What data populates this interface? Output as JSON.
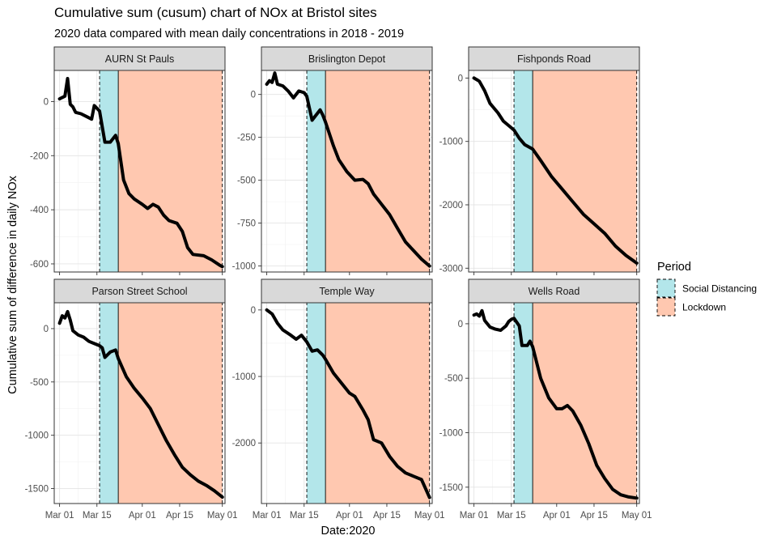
{
  "title": "Cumulative sum (cusum) chart of NOx at Bristol sites",
  "subtitle": "2020 data compared with mean daily concentrations in 2018 - 2019",
  "chart_data": {
    "type": "line",
    "xlabel": "Date:2020",
    "ylabel": "Cumulative sum of difference in daily NOx",
    "x_range": [
      "2020-02-28",
      "2020-05-02"
    ],
    "x_ticks": [
      {
        "date": "2020-03-01",
        "label": "Mar 01"
      },
      {
        "date": "2020-03-15",
        "label": "Mar 15"
      },
      {
        "date": "2020-04-01",
        "label": "Apr 01"
      },
      {
        "date": "2020-04-15",
        "label": "Apr 15"
      },
      {
        "date": "2020-05-01",
        "label": "May 01"
      }
    ],
    "grid": true,
    "legend": {
      "title": "Period",
      "position": "right",
      "entries": [
        {
          "label": "Social Distancing",
          "color": "#b3e6ea"
        },
        {
          "label": "Lockdown",
          "color": "#ffc8b0"
        }
      ]
    },
    "periods": [
      {
        "name": "Social Distancing",
        "start": "2020-03-16",
        "end": "2020-03-23"
      },
      {
        "name": "Lockdown",
        "start": "2020-03-23",
        "end": "2020-05-01"
      }
    ],
    "panels": [
      {
        "name": "AURN St Pauls",
        "ylim": [
          -630,
          115
        ],
        "yticks": [
          0,
          -200,
          -400,
          -600
        ],
        "ytick_labels": [
          "0",
          "-200",
          "-400",
          "-600"
        ],
        "points": [
          [
            "2020-03-01",
            10
          ],
          [
            "2020-03-02",
            15
          ],
          [
            "2020-03-03",
            20
          ],
          [
            "2020-03-04",
            85
          ],
          [
            "2020-03-05",
            -10
          ],
          [
            "2020-03-06",
            -20
          ],
          [
            "2020-03-07",
            -40
          ],
          [
            "2020-03-09",
            -45
          ],
          [
            "2020-03-11",
            -55
          ],
          [
            "2020-03-13",
            -65
          ],
          [
            "2020-03-14",
            -15
          ],
          [
            "2020-03-16",
            -35
          ],
          [
            "2020-03-18",
            -150
          ],
          [
            "2020-03-20",
            -150
          ],
          [
            "2020-03-22",
            -125
          ],
          [
            "2020-03-23",
            -155
          ],
          [
            "2020-03-25",
            -290
          ],
          [
            "2020-03-27",
            -340
          ],
          [
            "2020-03-29",
            -360
          ],
          [
            "2020-04-01",
            -380
          ],
          [
            "2020-04-03",
            -395
          ],
          [
            "2020-04-05",
            -380
          ],
          [
            "2020-04-07",
            -390
          ],
          [
            "2020-04-09",
            -420
          ],
          [
            "2020-04-11",
            -440
          ],
          [
            "2020-04-14",
            -450
          ],
          [
            "2020-04-16",
            -480
          ],
          [
            "2020-04-18",
            -540
          ],
          [
            "2020-04-20",
            -565
          ],
          [
            "2020-04-24",
            -570
          ],
          [
            "2020-04-27",
            -585
          ],
          [
            "2020-04-30",
            -605
          ],
          [
            "2020-05-01",
            -610
          ]
        ]
      },
      {
        "name": "Brislington Depot",
        "ylim": [
          -1035,
          140
        ],
        "yticks": [
          0,
          -250,
          -500,
          -750,
          -1000
        ],
        "ytick_labels": [
          "0",
          "-250",
          "-500",
          "-750",
          "-1000"
        ],
        "points": [
          [
            "2020-03-01",
            60
          ],
          [
            "2020-03-02",
            80
          ],
          [
            "2020-03-03",
            70
          ],
          [
            "2020-03-04",
            125
          ],
          [
            "2020-03-05",
            60
          ],
          [
            "2020-03-07",
            50
          ],
          [
            "2020-03-09",
            20
          ],
          [
            "2020-03-11",
            -20
          ],
          [
            "2020-03-13",
            20
          ],
          [
            "2020-03-15",
            10
          ],
          [
            "2020-03-16",
            -10
          ],
          [
            "2020-03-18",
            -150
          ],
          [
            "2020-03-20",
            -110
          ],
          [
            "2020-03-21",
            -90
          ],
          [
            "2020-03-22",
            -120
          ],
          [
            "2020-03-23",
            -160
          ],
          [
            "2020-03-26",
            -300
          ],
          [
            "2020-03-28",
            -380
          ],
          [
            "2020-03-31",
            -450
          ],
          [
            "2020-04-03",
            -500
          ],
          [
            "2020-04-06",
            -495
          ],
          [
            "2020-04-08",
            -520
          ],
          [
            "2020-04-10",
            -580
          ],
          [
            "2020-04-13",
            -640
          ],
          [
            "2020-04-16",
            -700
          ],
          [
            "2020-04-19",
            -780
          ],
          [
            "2020-04-22",
            -860
          ],
          [
            "2020-04-25",
            -910
          ],
          [
            "2020-04-28",
            -960
          ],
          [
            "2020-05-01",
            -1000
          ]
        ]
      },
      {
        "name": "Fishponds Road",
        "ylim": [
          -3060,
          120
        ],
        "yticks": [
          0,
          -1000,
          -2000,
          -3000
        ],
        "ytick_labels": [
          "0",
          "-1000",
          "-2000",
          "-3000"
        ],
        "points": [
          [
            "2020-03-01",
            0
          ],
          [
            "2020-03-03",
            -50
          ],
          [
            "2020-03-05",
            -200
          ],
          [
            "2020-03-07",
            -400
          ],
          [
            "2020-03-10",
            -550
          ],
          [
            "2020-03-12",
            -680
          ],
          [
            "2020-03-14",
            -750
          ],
          [
            "2020-03-16",
            -820
          ],
          [
            "2020-03-18",
            -950
          ],
          [
            "2020-03-20",
            -1050
          ],
          [
            "2020-03-23",
            -1120
          ],
          [
            "2020-03-26",
            -1300
          ],
          [
            "2020-03-30",
            -1550
          ],
          [
            "2020-04-03",
            -1750
          ],
          [
            "2020-04-07",
            -1950
          ],
          [
            "2020-04-11",
            -2150
          ],
          [
            "2020-04-15",
            -2300
          ],
          [
            "2020-04-19",
            -2450
          ],
          [
            "2020-04-23",
            -2650
          ],
          [
            "2020-04-27",
            -2800
          ],
          [
            "2020-05-01",
            -2920
          ]
        ]
      },
      {
        "name": "Parson Street School",
        "ylim": [
          -1640,
          250
        ],
        "yticks": [
          0,
          -500,
          -1000,
          -1500
        ],
        "ytick_labels": [
          "0",
          "-500",
          "-1000",
          "-1500"
        ],
        "points": [
          [
            "2020-03-01",
            50
          ],
          [
            "2020-03-02",
            120
          ],
          [
            "2020-03-03",
            100
          ],
          [
            "2020-03-04",
            160
          ],
          [
            "2020-03-05",
            80
          ],
          [
            "2020-03-06",
            -20
          ],
          [
            "2020-03-08",
            -60
          ],
          [
            "2020-03-10",
            -80
          ],
          [
            "2020-03-12",
            -120
          ],
          [
            "2020-03-14",
            -140
          ],
          [
            "2020-03-16",
            -160
          ],
          [
            "2020-03-17",
            -180
          ],
          [
            "2020-03-18",
            -270
          ],
          [
            "2020-03-20",
            -220
          ],
          [
            "2020-03-22",
            -200
          ],
          [
            "2020-03-23",
            -280
          ],
          [
            "2020-03-26",
            -450
          ],
          [
            "2020-03-29",
            -560
          ],
          [
            "2020-04-01",
            -650
          ],
          [
            "2020-04-04",
            -750
          ],
          [
            "2020-04-07",
            -900
          ],
          [
            "2020-04-10",
            -1050
          ],
          [
            "2020-04-13",
            -1180
          ],
          [
            "2020-04-16",
            -1300
          ],
          [
            "2020-04-19",
            -1370
          ],
          [
            "2020-04-22",
            -1430
          ],
          [
            "2020-04-25",
            -1470
          ],
          [
            "2020-04-28",
            -1520
          ],
          [
            "2020-05-01",
            -1580
          ]
        ]
      },
      {
        "name": "Temple Way",
        "ylim": [
          -2910,
          120
        ],
        "yticks": [
          0,
          -1000,
          -2000
        ],
        "ytick_labels": [
          "0",
          "-1000",
          "-2000"
        ],
        "points": [
          [
            "2020-03-01",
            0
          ],
          [
            "2020-03-03",
            -60
          ],
          [
            "2020-03-05",
            -200
          ],
          [
            "2020-03-07",
            -300
          ],
          [
            "2020-03-10",
            -380
          ],
          [
            "2020-03-12",
            -440
          ],
          [
            "2020-03-14",
            -380
          ],
          [
            "2020-03-16",
            -480
          ],
          [
            "2020-03-18",
            -620
          ],
          [
            "2020-03-20",
            -600
          ],
          [
            "2020-03-22",
            -680
          ],
          [
            "2020-03-23",
            -740
          ],
          [
            "2020-03-26",
            -950
          ],
          [
            "2020-03-29",
            -1100
          ],
          [
            "2020-04-01",
            -1250
          ],
          [
            "2020-04-03",
            -1300
          ],
          [
            "2020-04-06",
            -1500
          ],
          [
            "2020-04-08",
            -1650
          ],
          [
            "2020-04-10",
            -1950
          ],
          [
            "2020-04-13",
            -2000
          ],
          [
            "2020-04-16",
            -2200
          ],
          [
            "2020-04-19",
            -2350
          ],
          [
            "2020-04-22",
            -2450
          ],
          [
            "2020-04-25",
            -2500
          ],
          [
            "2020-04-28",
            -2550
          ],
          [
            "2020-05-01",
            -2820
          ]
        ]
      },
      {
        "name": "Wells Road",
        "ylim": [
          -1650,
          200
        ],
        "yticks": [
          0,
          -500,
          -1000,
          -1500
        ],
        "ytick_labels": [
          "0",
          "-500",
          "-1000",
          "-1500"
        ],
        "points": [
          [
            "2020-03-01",
            80
          ],
          [
            "2020-03-02",
            90
          ],
          [
            "2020-03-03",
            70
          ],
          [
            "2020-03-04",
            120
          ],
          [
            "2020-03-05",
            30
          ],
          [
            "2020-03-07",
            -30
          ],
          [
            "2020-03-09",
            -50
          ],
          [
            "2020-03-11",
            -60
          ],
          [
            "2020-03-13",
            -20
          ],
          [
            "2020-03-14",
            20
          ],
          [
            "2020-03-15",
            40
          ],
          [
            "2020-03-16",
            50
          ],
          [
            "2020-03-18",
            -20
          ],
          [
            "2020-03-19",
            -200
          ],
          [
            "2020-03-21",
            -200
          ],
          [
            "2020-03-22",
            -160
          ],
          [
            "2020-03-23",
            -210
          ],
          [
            "2020-03-26",
            -500
          ],
          [
            "2020-03-29",
            -680
          ],
          [
            "2020-04-01",
            -780
          ],
          [
            "2020-04-03",
            -780
          ],
          [
            "2020-04-05",
            -750
          ],
          [
            "2020-04-07",
            -800
          ],
          [
            "2020-04-10",
            -930
          ],
          [
            "2020-04-13",
            -1100
          ],
          [
            "2020-04-16",
            -1300
          ],
          [
            "2020-04-19",
            -1420
          ],
          [
            "2020-04-22",
            -1520
          ],
          [
            "2020-04-25",
            -1570
          ],
          [
            "2020-04-28",
            -1590
          ],
          [
            "2020-05-01",
            -1600
          ]
        ]
      }
    ]
  }
}
